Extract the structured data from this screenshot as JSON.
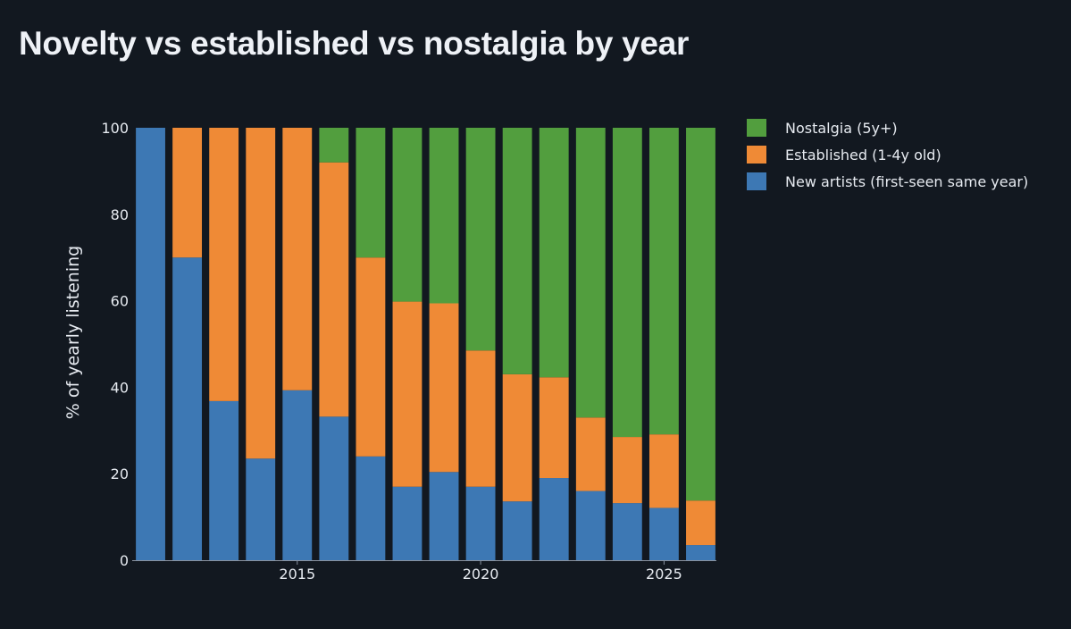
{
  "title": "Novelty vs established vs nostalgia by year",
  "chart_data": {
    "type": "bar",
    "stacked": true,
    "title": "Novelty vs established vs nostalgia by year",
    "xlabel": "",
    "ylabel": "% of yearly listening",
    "ylim": [
      0,
      100
    ],
    "yticks": [
      0,
      20,
      40,
      60,
      80,
      100
    ],
    "xticks": [
      2015,
      2020,
      2025
    ],
    "xlim": [
      2010.5,
      2026.5
    ],
    "x": [
      2011,
      2012,
      2013,
      2014,
      2015,
      2016,
      2017,
      2018,
      2019,
      2020,
      2021,
      2022,
      2023,
      2024,
      2025,
      2026
    ],
    "series": [
      {
        "name": "New artists (first-seen same year)",
        "color": "#3d78b4",
        "values": [
          100,
          70,
          36.8,
          23.5,
          39.3,
          33.2,
          24,
          17,
          20.4,
          17,
          13.6,
          19,
          16,
          13.2,
          12.1,
          3.5
        ]
      },
      {
        "name": "Established (1-4y old)",
        "color": "#ef8a36",
        "values": [
          0,
          30,
          63.2,
          76.5,
          60.7,
          58.8,
          46,
          42.8,
          39,
          31.5,
          29.4,
          23.3,
          17,
          15.3,
          17,
          10.3
        ]
      },
      {
        "name": "Nostalgia (5y+)",
        "color": "#529e3e",
        "values": [
          0,
          0,
          0,
          0,
          0,
          8,
          30,
          40.2,
          40.6,
          51.5,
          57,
          57.7,
          67,
          71.5,
          70.9,
          86.2
        ]
      }
    ],
    "legend": {
      "placement": "top-right",
      "order": [
        "Nostalgia (5y+)",
        "Established (1-4y old)",
        "New artists (first-seen same year)"
      ]
    }
  }
}
